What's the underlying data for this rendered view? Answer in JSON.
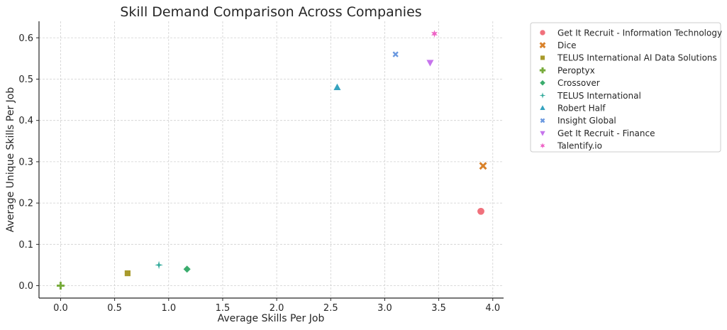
{
  "chart_data": {
    "type": "scatter",
    "title": "Skill Demand Comparison Across Companies",
    "xlabel": "Average Skills Per Job",
    "ylabel": "Average Unique Skills Per Job",
    "xlim": [
      -0.2,
      4.1
    ],
    "ylim": [
      -0.03,
      0.64
    ],
    "xticks": [
      0.0,
      0.5,
      1.0,
      1.5,
      2.0,
      2.5,
      3.0,
      3.5,
      4.0
    ],
    "xtick_labels": [
      "0.0",
      "0.5",
      "1.0",
      "1.5",
      "2.0",
      "2.5",
      "3.0",
      "3.5",
      "4.0"
    ],
    "yticks": [
      0.0,
      0.1,
      0.2,
      0.3,
      0.4,
      0.5,
      0.6
    ],
    "ytick_labels": [
      "0.0",
      "0.1",
      "0.2",
      "0.3",
      "0.4",
      "0.5",
      "0.6"
    ],
    "grid": true,
    "legend_position": "outside-right",
    "series": [
      {
        "name": "Get It Recruit - Information Technology",
        "x": 3.89,
        "y": 0.18,
        "marker": "circle",
        "color": "#f0717c"
      },
      {
        "name": "Dice",
        "x": 3.91,
        "y": 0.29,
        "marker": "x",
        "color": "#d9822b"
      },
      {
        "name": "TELUS International AI Data Solutions",
        "x": 0.62,
        "y": 0.03,
        "marker": "square",
        "color": "#a89a2c"
      },
      {
        "name": "Peroptyx",
        "x": 0.0,
        "y": 0.0,
        "marker": "plus",
        "color": "#77ab3b"
      },
      {
        "name": "Crossover",
        "x": 1.17,
        "y": 0.04,
        "marker": "diamond",
        "color": "#3aac6d"
      },
      {
        "name": "TELUS International",
        "x": 0.91,
        "y": 0.05,
        "marker": "star4",
        "color": "#35ab9c"
      },
      {
        "name": "Robert Half",
        "x": 2.56,
        "y": 0.48,
        "marker": "triangle-up",
        "color": "#36a3bf"
      },
      {
        "name": "Insight Global",
        "x": 3.1,
        "y": 0.56,
        "marker": "x-small",
        "color": "#6b99e0"
      },
      {
        "name": "Get It Recruit - Finance",
        "x": 3.42,
        "y": 0.54,
        "marker": "triangle-down",
        "color": "#c674ec"
      },
      {
        "name": "Talentify.io",
        "x": 3.46,
        "y": 0.61,
        "marker": "star6",
        "color": "#ee63c5"
      }
    ]
  }
}
